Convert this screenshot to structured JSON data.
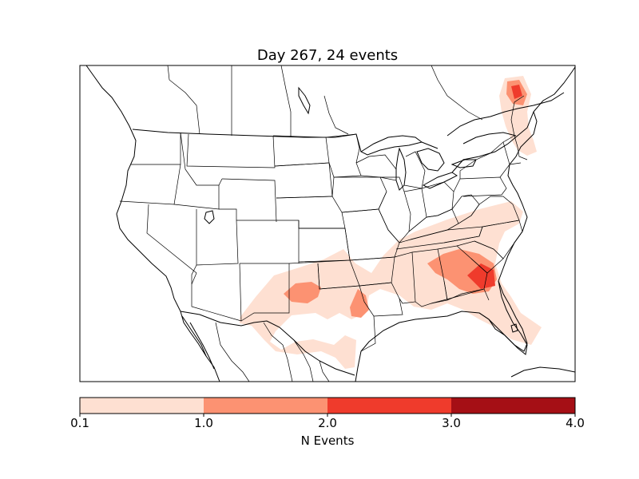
{
  "title": "Day 267, 24 events",
  "colorbar": {
    "label": "N Events",
    "ticks": [
      "0.1",
      "1.0",
      "2.0",
      "3.0",
      "4.0"
    ],
    "bins": [
      {
        "from": 0.1,
        "to": 1.0,
        "color": "#fee0d2"
      },
      {
        "from": 1.0,
        "to": 2.0,
        "color": "#fc9272"
      },
      {
        "from": 2.0,
        "to": 3.0,
        "color": "#ef3b2c"
      },
      {
        "from": 3.0,
        "to": 4.0,
        "color": "#a50f15"
      }
    ]
  },
  "map": {
    "region": "Contiguous United States with southern Canada and northern Mexico",
    "features": [
      "state boundaries",
      "country boundaries",
      "coastlines",
      "lakes"
    ]
  }
}
